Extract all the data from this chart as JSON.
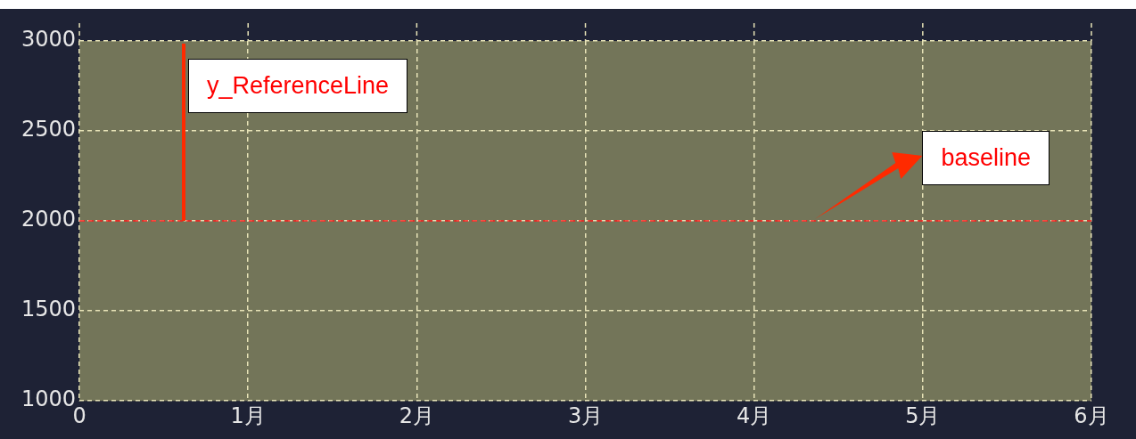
{
  "chart_data": {
    "type": "line",
    "xlim": [
      0,
      6
    ],
    "xticks": [
      0,
      {
        "value": 1,
        "label": "1月"
      },
      {
        "value": 2,
        "label": "2月"
      },
      {
        "value": 3,
        "label": "3月"
      },
      {
        "value": 4,
        "label": "4月"
      },
      {
        "value": 5,
        "label": "5月"
      },
      {
        "value": 6,
        "label": "6月"
      }
    ],
    "ylim": [
      1000,
      3000
    ],
    "yticks": [
      1000,
      1500,
      2000,
      2500,
      3000
    ],
    "grid": true,
    "ref_lines": [
      {
        "axis": "y",
        "value": 2000,
        "color": "#ff1a1a",
        "line_style": "dashed"
      }
    ],
    "annotations": [
      "y_ReferenceLine",
      "baseline"
    ]
  }
}
